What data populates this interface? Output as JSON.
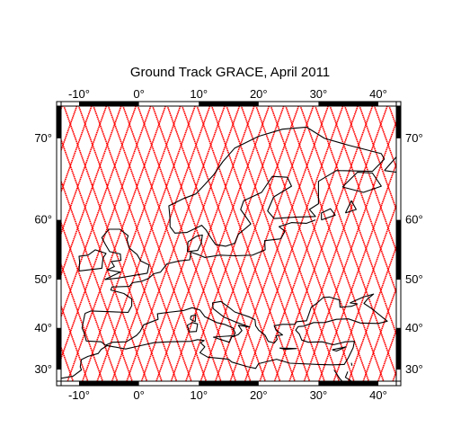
{
  "title": "Ground Track GRACE, April 2011",
  "map": {
    "projection": "mercator",
    "lon_range": [
      -13,
      43
    ],
    "lat_range": [
      27,
      73
    ],
    "lon_ticks": [
      -10,
      0,
      10,
      20,
      30,
      40
    ],
    "lat_ticks": [
      30,
      40,
      50,
      60,
      70
    ],
    "lon_labels": [
      "-10°",
      "0°",
      "10°",
      "20°",
      "30°",
      "40°"
    ],
    "lat_labels": [
      "30°",
      "40°",
      "50°",
      "60°",
      "70°"
    ],
    "frame_style": "fancy checkered border",
    "grid": false,
    "track_color": "#ff0000",
    "coast_color": "#000000",
    "track_style": "dense near-polar passes (ascending and descending)"
  }
}
